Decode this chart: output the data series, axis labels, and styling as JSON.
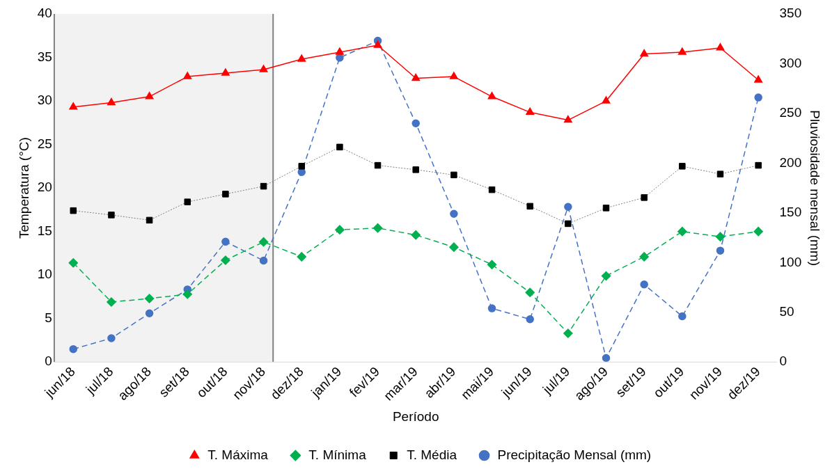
{
  "chart_data": {
    "type": "line",
    "xlabel": "Período",
    "ylabel": "Temperatura (°C)",
    "y2label": "Pluviosidade mensal (mm)",
    "categories": [
      "jun/18",
      "jul/18",
      "ago/18",
      "set/18",
      "out/18",
      "nov/18",
      "dez/18",
      "jan/19",
      "fev/19",
      "mar/19",
      "abr/19",
      "mai/19",
      "jun/19",
      "jul/19",
      "ago/19",
      "set/19",
      "out/19",
      "nov/19",
      "dez/19"
    ],
    "series": [
      {
        "name": "T. Máxima",
        "color": "#ff0000",
        "marker": "triangle",
        "line_style": "solid",
        "values": [
          29.3,
          29.8,
          30.5,
          32.8,
          33.2,
          33.6,
          34.8,
          35.6,
          36.4,
          32.6,
          32.8,
          30.5,
          28.7,
          27.8,
          30.0,
          35.4,
          35.6,
          36.1,
          32.4
        ]
      },
      {
        "name": "T. Mínima",
        "color": "#00b050",
        "marker": "diamond",
        "line_style": "dashed",
        "values": [
          11.4,
          6.9,
          7.3,
          7.8,
          11.7,
          13.8,
          12.1,
          15.2,
          15.4,
          14.6,
          13.2,
          11.2,
          8.0,
          3.3,
          9.9,
          12.1,
          15.0,
          14.4,
          15.0
        ]
      },
      {
        "name": "T. Média",
        "color": "#000000",
        "marker": "square",
        "line_style": "dotted",
        "values": [
          17.4,
          16.9,
          16.3,
          18.4,
          19.3,
          20.2,
          22.5,
          24.7,
          22.6,
          22.1,
          21.5,
          19.8,
          17.9,
          15.9,
          17.7,
          18.9,
          22.5,
          21.6,
          22.6
        ]
      },
      {
        "name": "Precipitação Mensal (mm)",
        "color": "#4472c4",
        "marker": "circle",
        "line_style": "dashed",
        "axis": "y2",
        "values": [
          13,
          24,
          49,
          73,
          121,
          102,
          191,
          306,
          323,
          240,
          149,
          54,
          43,
          156,
          4,
          78,
          46,
          112,
          266
        ]
      }
    ],
    "ylim": [
      0,
      40
    ],
    "yticks": [
      0,
      5,
      10,
      15,
      20,
      25,
      30,
      35,
      40
    ],
    "y2lim": [
      0,
      350
    ],
    "y2ticks": [
      0,
      50,
      100,
      150,
      200,
      250,
      300,
      350
    ],
    "bands": [
      {
        "axis": "x",
        "from": "jun/18",
        "to": "nov/18",
        "color": "#f2f2f2"
      }
    ],
    "grid": false,
    "legend": "bottom"
  }
}
